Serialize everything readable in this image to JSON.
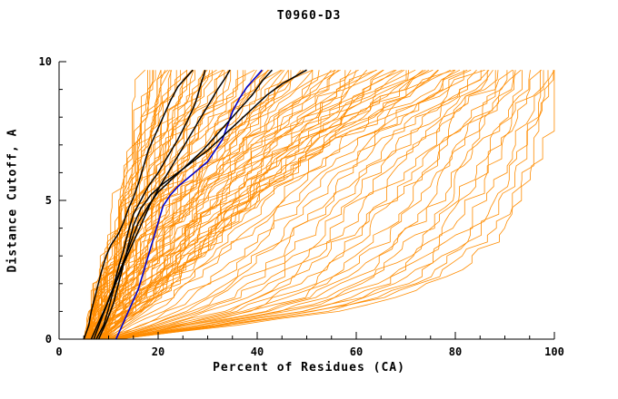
{
  "chart_data": {
    "type": "line",
    "title": "T0960-D3",
    "xlabel": "Percent of Residues (CA)",
    "ylabel": "Distance Cutoff, A",
    "xlim": [
      0,
      100
    ],
    "ylim": [
      0,
      10
    ],
    "x_major_ticks": [
      0,
      20,
      40,
      60,
      80,
      100
    ],
    "x_tick_labels": [
      "0",
      "20",
      "40",
      "60",
      "80",
      "100"
    ],
    "x_minor_step": 5,
    "y_major_ticks": [
      0,
      5,
      10
    ],
    "y_tick_labels": [
      "0",
      "5",
      "10"
    ],
    "y_minor_step": 1,
    "grid": false,
    "legend": "none",
    "colors": {
      "ensemble": "#ff8c00",
      "model": "#000000",
      "reference": "#0000cc",
      "axis": "#000000",
      "background": "#ffffff"
    },
    "ensemble": {
      "count": 110,
      "seed": 20960,
      "jitter": 0.55,
      "y_ctrl": [
        0,
        0.5,
        1,
        1.5,
        2,
        2.5,
        3,
        3.5,
        4,
        4.5,
        5,
        5.5,
        6,
        6.5,
        7,
        7.5,
        8,
        8.5,
        9,
        9.7
      ],
      "percentiles": [
        {
          "p": 0,
          "x": [
            5,
            5.5,
            6,
            6.6,
            7.2,
            7.8,
            8.4,
            9,
            9.6,
            10.2,
            10.8,
            11.4,
            12,
            12.6,
            13.2,
            13.8,
            14.4,
            15,
            15.6,
            16.5
          ]
        },
        {
          "p": 0.25,
          "x": [
            6,
            7,
            8.2,
            9.4,
            10.6,
            11.8,
            13,
            14.2,
            15.4,
            16.6,
            17.8,
            19,
            20.4,
            21.8,
            23.2,
            24.6,
            26,
            27.6,
            29.2,
            31.5
          ]
        },
        {
          "p": 0.5,
          "x": [
            7.5,
            9.5,
            11.5,
            13.5,
            15.5,
            17.5,
            19.5,
            21.5,
            23.5,
            25.5,
            28,
            30.5,
            33,
            35.5,
            38,
            41,
            44,
            47,
            50,
            54
          ]
        },
        {
          "p": 0.75,
          "x": [
            9,
            12.5,
            16,
            19.5,
            23,
            26,
            29,
            32,
            35,
            38,
            41,
            44,
            47.5,
            51,
            55,
            59,
            63.5,
            68,
            73,
            79
          ]
        },
        {
          "p": 1,
          "x": [
            12,
            35,
            55,
            68,
            75,
            80,
            84,
            87,
            89.5,
            91.5,
            93,
            94.2,
            95.3,
            96.3,
            97.2,
            98,
            98.7,
            99.2,
            99.7,
            100
          ]
        }
      ]
    },
    "models": [
      {
        "name": "model-blue",
        "color": "#0000cc",
        "width": 1.6,
        "points": [
          [
            11.5,
            0
          ],
          [
            13,
            0.6
          ],
          [
            14.5,
            1.2
          ],
          [
            16,
            1.8
          ],
          [
            17,
            2.4
          ],
          [
            18,
            3.0
          ],
          [
            19,
            3.6
          ],
          [
            20,
            4.2
          ],
          [
            21,
            4.8
          ],
          [
            22.5,
            5.2
          ],
          [
            24,
            5.5
          ],
          [
            26,
            5.8
          ],
          [
            28,
            6.1
          ],
          [
            30,
            6.4
          ],
          [
            31.5,
            6.8
          ],
          [
            33,
            7.2
          ],
          [
            34,
            7.7
          ],
          [
            35,
            8.2
          ],
          [
            36.5,
            8.7
          ],
          [
            38,
            9.1
          ],
          [
            39.5,
            9.4
          ],
          [
            41,
            9.7
          ]
        ]
      },
      {
        "name": "model-black-1",
        "color": "#000000",
        "width": 1.5,
        "points": [
          [
            5,
            0
          ],
          [
            6,
            0.5
          ],
          [
            6.5,
            1
          ],
          [
            7.5,
            1.7
          ],
          [
            8.5,
            2.4
          ],
          [
            9.5,
            3.0
          ],
          [
            10.5,
            3.4
          ],
          [
            12,
            3.8
          ],
          [
            13,
            4.2
          ],
          [
            14,
            4.7
          ],
          [
            15,
            5.1
          ],
          [
            16,
            5.6
          ],
          [
            17,
            6.2
          ],
          [
            18,
            6.8
          ],
          [
            19.5,
            7.4
          ],
          [
            21,
            8.0
          ],
          [
            22.5,
            8.6
          ],
          [
            24,
            9.1
          ],
          [
            25.5,
            9.4
          ],
          [
            27,
            9.7
          ]
        ]
      },
      {
        "name": "model-black-2",
        "color": "#000000",
        "width": 1.5,
        "points": [
          [
            6.5,
            0
          ],
          [
            8,
            0.6
          ],
          [
            9.5,
            1.2
          ],
          [
            11,
            1.9
          ],
          [
            12,
            2.6
          ],
          [
            13,
            3.2
          ],
          [
            14,
            3.9
          ],
          [
            15,
            4.5
          ],
          [
            16.5,
            5.0
          ],
          [
            18,
            5.5
          ],
          [
            20,
            6.0
          ],
          [
            22,
            6.6
          ],
          [
            24,
            7.2
          ],
          [
            26,
            7.9
          ],
          [
            27.5,
            8.5
          ],
          [
            28.5,
            9.1
          ],
          [
            29.5,
            9.7
          ]
        ]
      },
      {
        "name": "model-black-3",
        "color": "#000000",
        "width": 1.5,
        "points": [
          [
            7.5,
            0
          ],
          [
            9,
            0.5
          ],
          [
            10,
            1.1
          ],
          [
            11,
            1.8
          ],
          [
            12.5,
            2.5
          ],
          [
            14,
            3.1
          ],
          [
            15.5,
            3.7
          ],
          [
            17,
            4.3
          ],
          [
            18.5,
            4.9
          ],
          [
            20,
            5.4
          ],
          [
            22,
            6.0
          ],
          [
            24,
            6.6
          ],
          [
            26,
            7.2
          ],
          [
            28,
            7.8
          ],
          [
            30,
            8.4
          ],
          [
            32,
            9.0
          ],
          [
            33.5,
            9.4
          ],
          [
            34.5,
            9.7
          ]
        ]
      },
      {
        "name": "model-black-4",
        "color": "#000000",
        "width": 1.5,
        "points": [
          [
            7,
            0
          ],
          [
            8.5,
            0.7
          ],
          [
            10,
            1.4
          ],
          [
            11.5,
            2.1
          ],
          [
            13,
            2.8
          ],
          [
            14.5,
            3.5
          ],
          [
            16,
            4.2
          ],
          [
            18,
            4.8
          ],
          [
            20,
            5.3
          ],
          [
            23,
            5.8
          ],
          [
            26,
            6.3
          ],
          [
            29,
            6.8
          ],
          [
            31.5,
            7.3
          ],
          [
            34,
            7.8
          ],
          [
            36.5,
            8.3
          ],
          [
            39,
            8.8
          ],
          [
            41,
            9.3
          ],
          [
            43,
            9.7
          ]
        ]
      },
      {
        "name": "model-black-5",
        "color": "#000000",
        "width": 1.5,
        "points": [
          [
            8,
            0
          ],
          [
            9.5,
            0.6
          ],
          [
            11,
            1.3
          ],
          [
            12,
            2.0
          ],
          [
            13,
            2.7
          ],
          [
            14,
            3.4
          ],
          [
            15,
            4.1
          ],
          [
            16.5,
            4.7
          ],
          [
            18.5,
            5.2
          ],
          [
            21,
            5.6
          ],
          [
            24,
            6.0
          ],
          [
            27,
            6.4
          ],
          [
            30,
            6.8
          ],
          [
            33,
            7.3
          ],
          [
            36,
            7.8
          ],
          [
            39,
            8.3
          ],
          [
            42,
            8.8
          ],
          [
            45,
            9.2
          ],
          [
            48,
            9.5
          ],
          [
            50,
            9.7
          ]
        ]
      }
    ]
  }
}
